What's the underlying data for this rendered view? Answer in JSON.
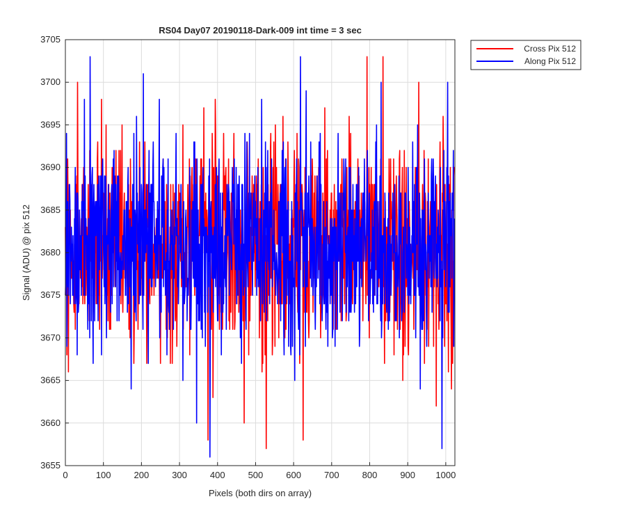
{
  "chart_data": {
    "type": "line",
    "title": "RS04 Day07 20190118-Dark-009 int time = 3 sec",
    "xlabel": "Pixels (both dirs on array)",
    "ylabel": "Signal (ADU) @ pix 512",
    "xlim": [
      0,
      1024
    ],
    "ylim": [
      3655,
      3705
    ],
    "xticks": [
      0,
      100,
      200,
      300,
      400,
      500,
      600,
      700,
      800,
      900,
      1000
    ],
    "yticks": [
      3655,
      3660,
      3665,
      3670,
      3675,
      3680,
      3685,
      3690,
      3695,
      3700,
      3705
    ],
    "grid": true,
    "legend_position": "outside top-right",
    "series": [
      {
        "name": "Cross Pix 512",
        "color": "#ff0000",
        "x_start": 0,
        "x_step": 1,
        "n_points": 1024,
        "mean": 3681,
        "min": 3657,
        "max": 3703,
        "notable_points": [
          {
            "x": 8,
            "y": 3666
          },
          {
            "x": 32,
            "y": 3700
          },
          {
            "x": 95,
            "y": 3698
          },
          {
            "x": 375,
            "y": 3658
          },
          {
            "x": 470,
            "y": 3660
          },
          {
            "x": 528,
            "y": 3657
          },
          {
            "x": 625,
            "y": 3658
          },
          {
            "x": 835,
            "y": 3703
          },
          {
            "x": 975,
            "y": 3662
          },
          {
            "x": 1015,
            "y": 3664
          }
        ]
      },
      {
        "name": "Along Pix 512",
        "color": "#0000ff",
        "x_start": 0,
        "x_step": 1,
        "n_points": 1024,
        "mean": 3681,
        "min": 3656,
        "max": 3703,
        "notable_points": [
          {
            "x": 65,
            "y": 3703
          },
          {
            "x": 205,
            "y": 3701
          },
          {
            "x": 345,
            "y": 3660
          },
          {
            "x": 380,
            "y": 3656
          },
          {
            "x": 618,
            "y": 3703
          },
          {
            "x": 830,
            "y": 3700
          },
          {
            "x": 990,
            "y": 3657
          },
          {
            "x": 1005,
            "y": 3700
          }
        ]
      }
    ]
  }
}
